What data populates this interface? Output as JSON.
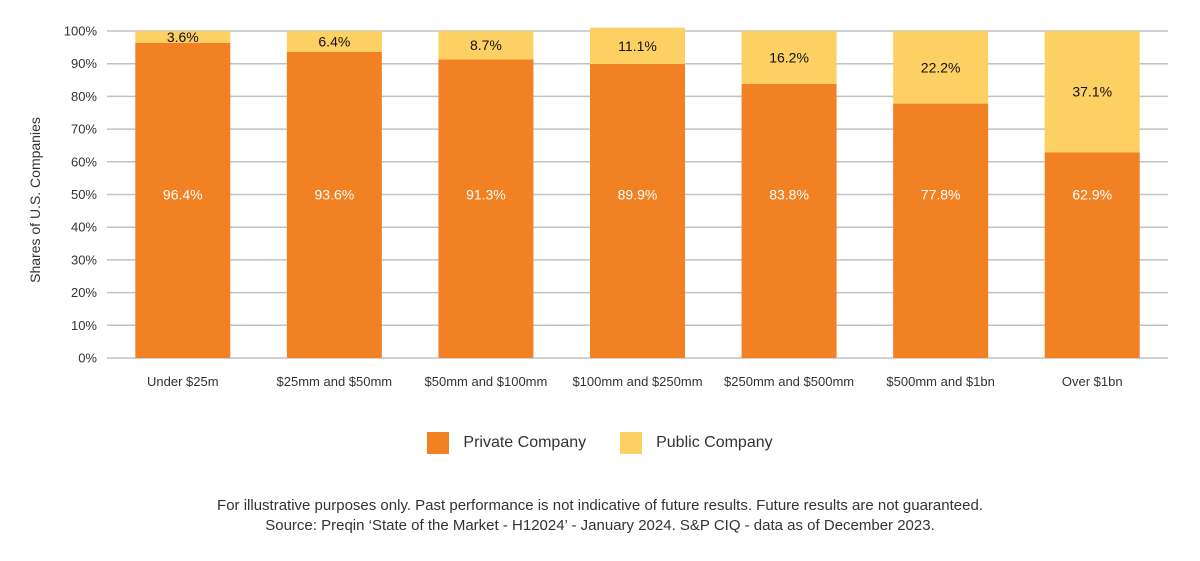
{
  "chart_data": {
    "type": "bar",
    "stacked": true,
    "categories": [
      "Under $25m",
      "$25mm and $50mm",
      "$50mm and $100mm",
      "$100mm and $250mm",
      "$250mm and $500mm",
      "$500mm and $1bn",
      "Over $1bn"
    ],
    "series": [
      {
        "name": "Private Company",
        "color": "#F28123",
        "values": [
          96.4,
          93.6,
          91.3,
          89.9,
          83.8,
          77.8,
          62.9
        ],
        "labels": [
          "96.4%",
          "93.6%",
          "91.3%",
          "89.9%",
          "83.8%",
          "77.8%",
          "62.9%"
        ]
      },
      {
        "name": "Public Company",
        "color": "#FCD063",
        "values": [
          3.6,
          6.4,
          8.7,
          11.1,
          16.2,
          22.2,
          37.1
        ],
        "labels": [
          "3.6%",
          "6.4%",
          "8.7%",
          "11.1%",
          "16.2%",
          "22.2%",
          "37.1%"
        ]
      }
    ],
    "ylabel": "Shares of U.S. Companies",
    "xlabel": "",
    "ylim": [
      0,
      100
    ],
    "yticks": [
      "0%",
      "10%",
      "20%",
      "30%",
      "40%",
      "50%",
      "60%",
      "70%",
      "80%",
      "90%",
      "100%"
    ],
    "grid": true,
    "legend_position": "bottom-center"
  },
  "legend": {
    "private_label": "Private Company",
    "public_label": "Public Company"
  },
  "footnote": {
    "line1": "For illustrative purposes only. Past performance is not indicative of future results. Future results are not guaranteed.",
    "line2": "Source: Preqin ‘State of the Market - H12024’ - January 2024. S&P CIQ - data as of December 2023."
  }
}
